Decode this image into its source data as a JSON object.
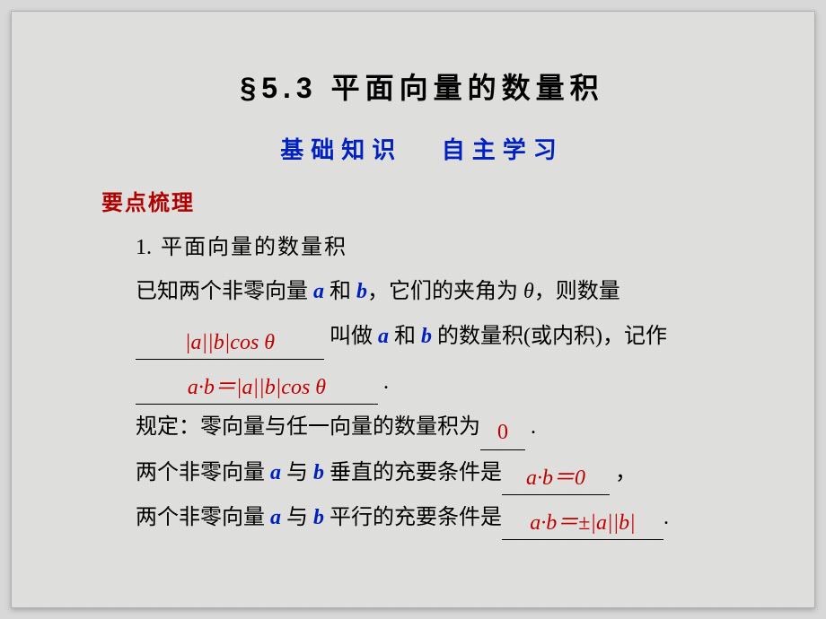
{
  "title": "§5.3  平面向量的数量积",
  "subtitle_left": "基础知识",
  "subtitle_right": "自主学习",
  "heading_red": "要点梳理",
  "item_num": "1.",
  "item_title": "平面向量的数量积",
  "line1_a": "已知两个非零向量 ",
  "line1_b": " 和 ",
  "line1_c": "，它们的夹角为 ",
  "line1_d": "，则数量",
  "vec_a": "a",
  "vec_b": "b",
  "theta": "θ",
  "blank1": "|a||b|cos θ",
  "line2_a": " 叫做 ",
  "line2_b": " 和 ",
  "line2_c": " 的数量积(或内积)，记作",
  "blank2_pre": "a·b＝",
  "blank2_body": "|a||b|cos θ",
  "period": ".",
  "comma": "，",
  "line3_a": "规定：零向量与任一向量的数量积为",
  "blank3": "0",
  "line4_a": "两个非零向量 ",
  "line4_b": " 与 ",
  "line4_c": " 垂直的充要条件是",
  "blank4": "a·b＝0",
  "line5_a": "两个非零向量 ",
  "line5_b": " 与 ",
  "line5_c": " 平行的充要条件是",
  "blank5_pre": "a·b＝",
  "blank5_pm": "±",
  "blank5_body": "|a||b|",
  "colors": {
    "title": "#000000",
    "subtitle": "#0020c0",
    "heading": "#b00000",
    "answer": "#c00000",
    "vector": "#0020c0",
    "background": "#e0dfdd"
  }
}
